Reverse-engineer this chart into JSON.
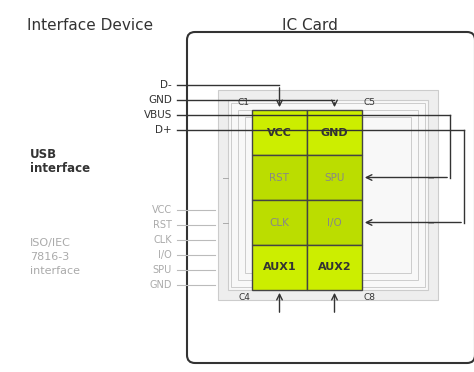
{
  "title_left": "Interface Device",
  "title_right": "IC Card",
  "bg_color": "#ffffff",
  "cell_bg_bright": "#ccee00",
  "cell_bg_mid": "#bbdd00",
  "cell_border": "#444444",
  "dark_line": "#333333",
  "gray_line": "#bbbbbb",
  "text_color": "#333333",
  "gray_text": "#aaaaaa",
  "usb_signals": [
    "D-",
    "GND",
    "VBUS",
    "D+"
  ],
  "iso_signals": [
    "VCC",
    "RST",
    "CLK",
    "I/O",
    "SPU",
    "GND"
  ],
  "cell_labels": [
    [
      "VCC",
      "GND"
    ],
    [
      "RST",
      "SPU"
    ],
    [
      "CLK",
      "I/O"
    ],
    [
      "AUX1",
      "AUX2"
    ]
  ],
  "corner_labels": [
    "C1",
    "C5",
    "C4",
    "C8"
  ],
  "figsize": [
    4.74,
    3.72
  ],
  "dpi": 100
}
